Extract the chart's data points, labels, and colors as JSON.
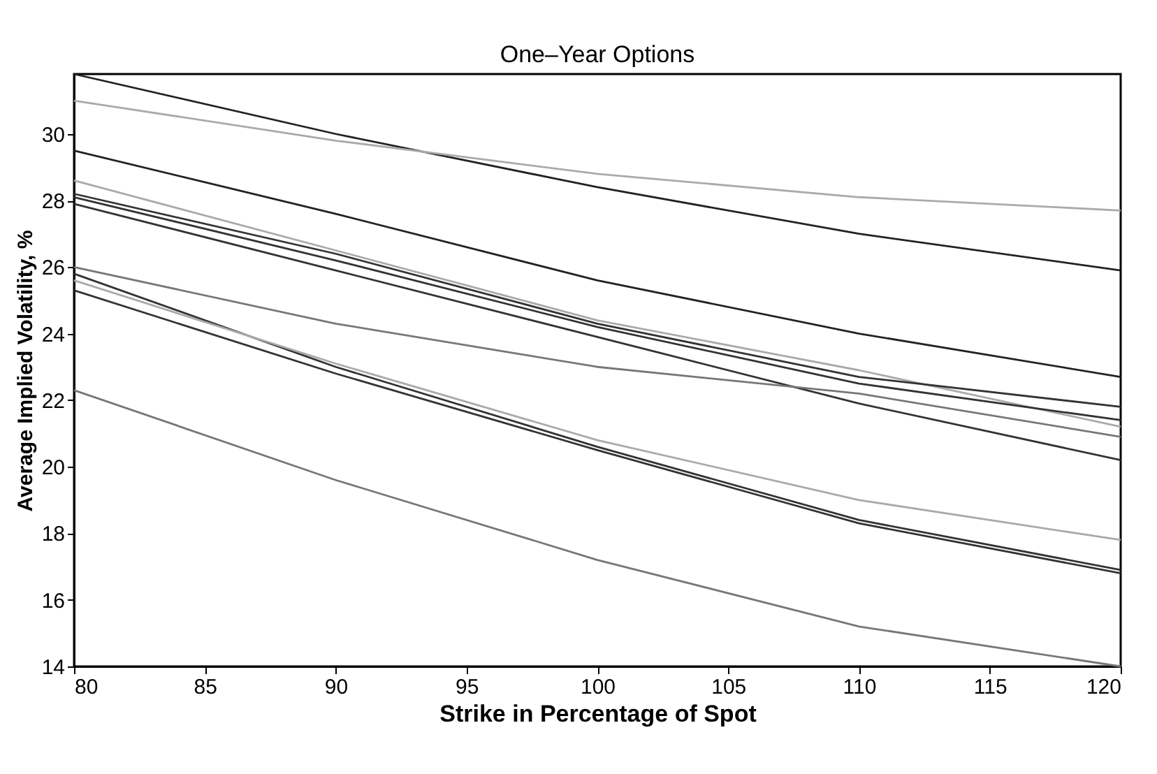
{
  "chart_data": {
    "type": "line",
    "title": "One–Year Options",
    "xlabel": "Strike in Percentage of Spot",
    "ylabel": "Average Implied Volatility, %",
    "x": [
      80,
      90,
      100,
      110,
      120
    ],
    "series": [
      {
        "color": "#222222",
        "values": [
          31.8,
          30.0,
          28.4,
          27.0,
          25.9
        ]
      },
      {
        "color": "#aaaaaa",
        "values": [
          31.0,
          29.8,
          28.8,
          28.1,
          27.7
        ]
      },
      {
        "color": "#222222",
        "values": [
          29.5,
          27.6,
          25.6,
          24.0,
          22.7
        ]
      },
      {
        "color": "#aaaaaa",
        "values": [
          28.6,
          26.5,
          24.4,
          22.9,
          21.2
        ]
      },
      {
        "color": "#333333",
        "values": [
          28.2,
          26.4,
          24.3,
          22.7,
          21.8
        ]
      },
      {
        "color": "#333333",
        "values": [
          28.1,
          26.2,
          24.2,
          22.5,
          21.4
        ]
      },
      {
        "color": "#333333",
        "values": [
          27.9,
          25.9,
          23.9,
          21.9,
          20.2
        ]
      },
      {
        "color": "#777777",
        "values": [
          26.0,
          24.3,
          23.0,
          22.2,
          20.9
        ]
      },
      {
        "color": "#333333",
        "values": [
          25.8,
          23.0,
          20.6,
          18.4,
          16.9
        ]
      },
      {
        "color": "#aaaaaa",
        "values": [
          25.6,
          23.1,
          20.8,
          19.0,
          17.8
        ]
      },
      {
        "color": "#333333",
        "values": [
          25.3,
          22.8,
          20.5,
          18.3,
          16.8
        ]
      },
      {
        "color": "#777777",
        "values": [
          22.3,
          19.6,
          17.2,
          15.2,
          14.0
        ]
      }
    ],
    "xlim": [
      80,
      120
    ],
    "xticks": [
      80,
      85,
      90,
      95,
      100,
      105,
      110,
      115,
      120
    ],
    "ylim": [
      14,
      31.8
    ],
    "yticks": [
      14,
      16,
      18,
      20,
      22,
      24,
      26,
      28,
      30
    ],
    "grid": false,
    "legend": false,
    "line_style": "solid"
  }
}
